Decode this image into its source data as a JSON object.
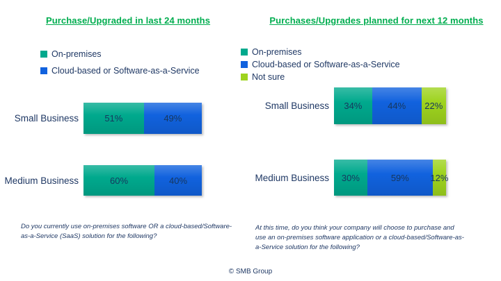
{
  "page": {
    "background": "#FFFFFF"
  },
  "colors": {
    "title_green": "#00AD4F",
    "text_navy": "#1F3864",
    "value_label_navy": "#17375E",
    "on_premises": "#00A98D",
    "cloud_saas": "#1162DE",
    "not_sure": "#9ED31E"
  },
  "footer": {
    "copyright": "© SMB Group"
  },
  "chart_data": [
    {
      "type": "bar",
      "subtype": "stacked-horizontal",
      "title": "Purchase/Upgraded in last 24 months",
      "categories": [
        "Small Business",
        "Medium Business"
      ],
      "series": [
        {
          "name": "On-premises",
          "color": "#00A98D",
          "values": [
            51,
            60
          ],
          "labels": [
            "51%",
            "60%"
          ]
        },
        {
          "name": "Cloud-based or Software-as-a-Service",
          "color": "#1162DE",
          "values": [
            49,
            40
          ],
          "labels": [
            "49%",
            "40%"
          ]
        }
      ],
      "unit": "%",
      "xlim": [
        0,
        100
      ],
      "grid": false,
      "legend_position": "top-left",
      "footnote": "Do you currently use on-premises software OR a cloud-based/Software-as-a-Service (SaaS) solution for the following?"
    },
    {
      "type": "bar",
      "subtype": "stacked-horizontal",
      "title": "Purchases/Upgrades planned for next 12 months",
      "categories": [
        "Small Business",
        "Medium Business"
      ],
      "series": [
        {
          "name": "On-premises",
          "color": "#00A98D",
          "values": [
            34,
            30
          ],
          "labels": [
            "34%",
            "30%"
          ]
        },
        {
          "name": "Cloud-based or Software-as-a-Service",
          "color": "#1162DE",
          "values": [
            44,
            59
          ],
          "labels": [
            "44%",
            "59%"
          ]
        },
        {
          "name": "Not sure",
          "color": "#9ED31E",
          "values": [
            22,
            12
          ],
          "labels": [
            "22%",
            "12%"
          ]
        }
      ],
      "unit": "%",
      "xlim": [
        0,
        100
      ],
      "grid": false,
      "legend_position": "top-left",
      "footnote": "At this time, do you think your company will choose to purchase and use an on-premises software application or a cloud-based/Software-as-a-Service solution for the following?"
    }
  ]
}
